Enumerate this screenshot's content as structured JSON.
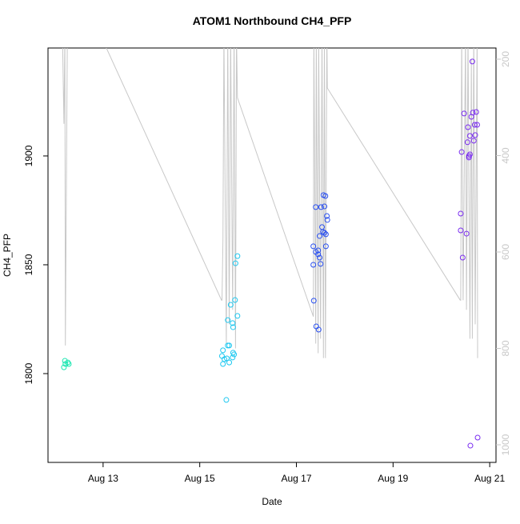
{
  "chart_data": {
    "type": "scatter",
    "title": "ATOM1 Northbound CH4_PFP",
    "x_label": "Date",
    "y_label": "CH4_PFP",
    "xlim": [
      11.86,
      21.13
    ],
    "xticks": [
      {
        "value": 13,
        "label": "Aug 13"
      },
      {
        "value": 15,
        "label": "Aug 15"
      },
      {
        "value": 17,
        "label": "Aug 17"
      },
      {
        "value": 19,
        "label": "Aug 19"
      },
      {
        "value": 21,
        "label": "Aug 21"
      }
    ],
    "ylim": [
      1759.2,
      1949.6
    ],
    "yticks": [
      1800,
      1850,
      1900
    ],
    "y2lim": [
      1036.5,
      176.8
    ],
    "y2ticks": [
      200,
      400,
      600,
      800,
      1000
    ],
    "y2_color": "#c8c8c8",
    "series": [
      {
        "type": "scatter",
        "color": "#19e6b0",
        "x": [
          12.19,
          12.21,
          12.22,
          12.27,
          12.29
        ],
        "values": [
          1802.9,
          1805.9,
          1804.4,
          1805.1,
          1804.4
        ]
      },
      {
        "type": "scatter",
        "color": "#1ec8f0",
        "x": [
          15.55,
          15.48,
          15.46,
          15.51,
          15.48,
          15.56,
          15.61,
          15.68,
          15.71,
          15.69,
          15.58,
          15.61,
          15.58,
          15.64,
          15.68,
          15.69,
          15.73,
          15.74,
          15.78,
          15.78
        ],
        "values": [
          1787.9,
          1810.7,
          1808.1,
          1806.6,
          1804.4,
          1807.0,
          1805.1,
          1807.4,
          1808.8,
          1809.6,
          1812.9,
          1812.9,
          1824.6,
          1831.6,
          1823.2,
          1821.3,
          1833.8,
          1850.7,
          1854.0,
          1826.5
        ]
      },
      {
        "type": "scatter",
        "color": "#2a50f0",
        "x": [
          17.36,
          17.41,
          17.46,
          17.35,
          17.4,
          17.45,
          17.45,
          17.48,
          17.5,
          17.48,
          17.53,
          17.55,
          17.56,
          17.58,
          17.58,
          17.6,
          17.61,
          17.61,
          17.63,
          17.64,
          17.4,
          17.51,
          17.35
        ],
        "values": [
          1833.5,
          1821.7,
          1820.2,
          1850.0,
          1855.9,
          1854.8,
          1856.6,
          1853.3,
          1850.4,
          1863.2,
          1867.3,
          1865.1,
          1882.0,
          1864.7,
          1876.8,
          1881.6,
          1858.5,
          1864.0,
          1872.4,
          1870.6,
          1876.5,
          1876.5,
          1858.5
        ]
      },
      {
        "type": "scatter",
        "color": "#7a2cf0",
        "x": [
          20.4,
          20.44,
          20.42,
          20.47,
          20.52,
          20.54,
          20.55,
          20.57,
          20.57,
          20.59,
          20.59,
          20.6,
          20.62,
          20.64,
          20.65,
          20.67,
          20.69,
          20.7,
          20.72,
          20.74,
          20.75,
          20.4
        ],
        "values": [
          1873.5,
          1853.3,
          1901.8,
          1919.5,
          1864.3,
          1906.3,
          1913.2,
          1900.0,
          1899.3,
          1900.7,
          1909.2,
          1766.9,
          1918.0,
          1943.4,
          1919.9,
          1907.0,
          1914.3,
          1909.6,
          1920.2,
          1914.3,
          1770.6,
          1865.8
        ]
      },
      {
        "type": "line",
        "axis": "y2",
        "color": "#c8c8c8",
        "x": [
          12.16,
          12.19,
          12.21,
          12.22,
          12.26,
          12.29,
          15.45,
          15.46,
          15.48,
          15.5,
          15.55,
          15.58,
          15.61,
          15.64,
          15.68,
          15.71,
          15.74,
          15.76,
          15.78,
          17.35,
          17.36,
          17.4,
          17.41,
          17.45,
          17.46,
          17.5,
          17.53,
          17.56,
          17.58,
          17.6,
          17.63,
          17.64,
          20.39,
          20.4,
          20.42,
          20.45,
          20.5,
          20.52,
          20.55,
          20.59,
          20.62,
          20.64,
          20.67,
          20.7,
          20.74,
          20.75
        ],
        "values": [
          150,
          334,
          150,
          794,
          150,
          6,
          700,
          700,
          575,
          150,
          791,
          150,
          750,
          150,
          720,
          150,
          800,
          150,
          280,
          734,
          150,
          790,
          150,
          810,
          150,
          780,
          150,
          820,
          150,
          820,
          150,
          260,
          700,
          700,
          150,
          700,
          150,
          720,
          150,
          780,
          200,
          780,
          150,
          750,
          150,
          820
        ]
      }
    ]
  }
}
